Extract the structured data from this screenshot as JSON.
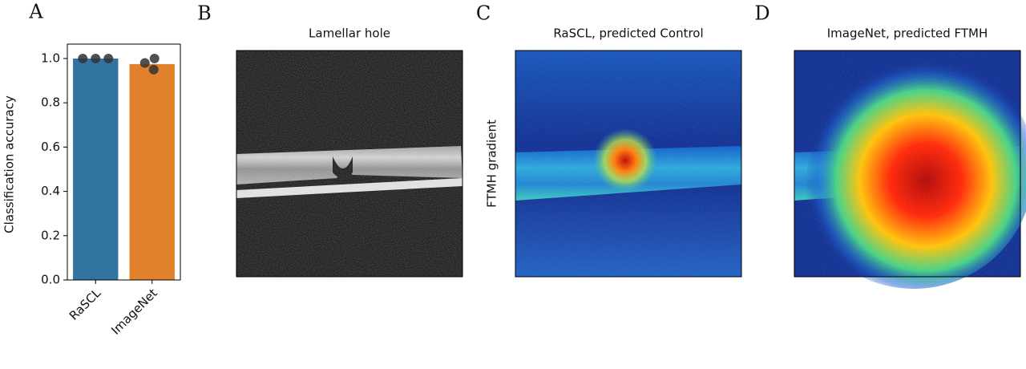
{
  "chart_data": {
    "type": "bar",
    "panel_label": "A",
    "ylabel": "Classification accuracy",
    "categories": [
      "RaSCL",
      "ImageNet"
    ],
    "values": [
      1.0,
      0.975
    ],
    "colors": [
      "#3274a1",
      "#e1812c"
    ],
    "points": [
      [
        1.0,
        1.0,
        1.0
      ],
      [
        0.98,
        1.0,
        0.95
      ]
    ],
    "point_color": "#333333",
    "ylim": [
      0,
      1.065
    ],
    "yticks": [
      {
        "value": 0,
        "label": "0.0"
      },
      0.2,
      0.4,
      0.6,
      0.8,
      {
        "value": 1,
        "label": "1.0"
      }
    ]
  },
  "panels": [
    {
      "label": "B",
      "title": "Lamellar hole"
    },
    {
      "label": "C",
      "title": "RaSCL, predicted Control",
      "ylabel": "FTMH gradient"
    },
    {
      "label": "D",
      "title": "ImageNet, predicted FTMH"
    }
  ]
}
